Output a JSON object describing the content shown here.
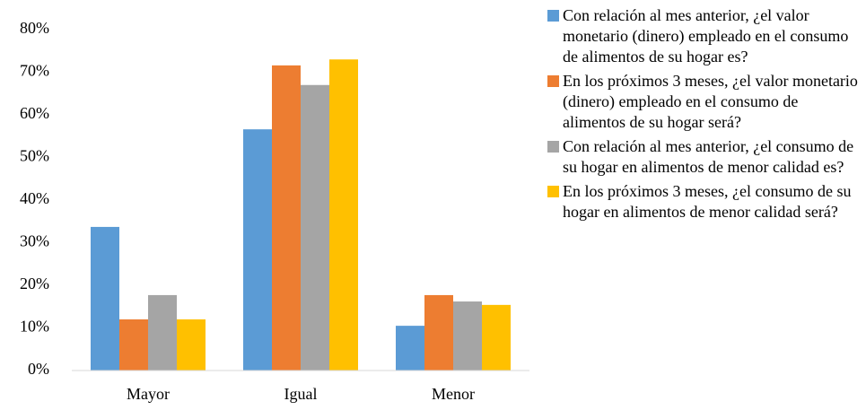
{
  "chart_data": {
    "type": "bar",
    "categories": [
      "Mayor",
      "Igual",
      "Menor"
    ],
    "series": [
      {
        "name": "Con relación al mes anterior, ¿el valor monetario (dinero) empleado en el consumo de alimentos de su hogar es?",
        "color": "#5b9bd5",
        "values": [
          33.7,
          56.6,
          10.5
        ]
      },
      {
        "name": "En los próximos 3 meses, ¿el valor monetario (dinero) empleado en el consumo de alimentos de su hogar será?",
        "color": "#ed7d31",
        "values": [
          12,
          71.6,
          17.7
        ]
      },
      {
        "name": "Con relación al mes anterior, ¿el consumo de su hogar en alimentos de menor calidad es?",
        "color": "#a5a5a5",
        "values": [
          17.7,
          67,
          16.2
        ]
      },
      {
        "name": "En los próximos 3 meses, ¿el consumo de su hogar en alimentos de menor calidad será?",
        "color": "#ffc000",
        "values": [
          12,
          73,
          15.4
        ]
      }
    ],
    "ylim": [
      0,
      80
    ],
    "yticks": [
      {
        "value": 0,
        "label": "0%"
      },
      {
        "value": 10,
        "label": "10%"
      },
      {
        "value": 20,
        "label": "20%"
      },
      {
        "value": 30,
        "label": "30%"
      },
      {
        "value": 40,
        "label": "40%"
      },
      {
        "value": 50,
        "label": "50%"
      },
      {
        "value": 60,
        "label": "60%"
      },
      {
        "value": 70,
        "label": "70%"
      },
      {
        "value": 80,
        "label": "80%"
      }
    ],
    "grid": false,
    "legend": "right"
  }
}
